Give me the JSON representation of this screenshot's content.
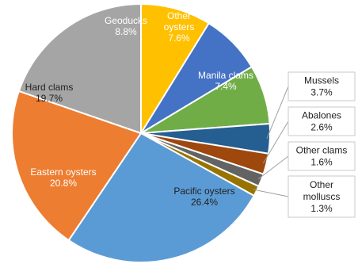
{
  "chart_data": {
    "type": "pie",
    "slices": [
      {
        "label": "Geoducks",
        "value": 8.8,
        "value_label": "8.8%",
        "color": "#FFC000",
        "label_color": "#ffffff"
      },
      {
        "label": "Other oysters",
        "label_lines": [
          "Other",
          "oysters"
        ],
        "value": 7.6,
        "value_label": "7.6%",
        "color": "#4472C4",
        "label_color": "#ffffff"
      },
      {
        "label": "Manila clams",
        "value": 7.4,
        "value_label": "7.4%",
        "color": "#70AD47",
        "label_color": "#ffffff"
      },
      {
        "label": "Mussels",
        "value": 3.7,
        "value_label": "3.7%",
        "color": "#255E91",
        "label_color": "#222222",
        "callout": true
      },
      {
        "label": "Abalones",
        "value": 2.6,
        "value_label": "2.6%",
        "color": "#9E480E",
        "label_color": "#222222",
        "callout": true
      },
      {
        "label": "Other clams",
        "value": 1.6,
        "value_label": "1.6%",
        "color": "#636363",
        "label_color": "#222222",
        "callout": true
      },
      {
        "label": "Other molluscs",
        "label_lines": [
          "Other",
          "molluscs"
        ],
        "value": 1.3,
        "value_label": "1.3%",
        "color": "#997300",
        "label_color": "#222222",
        "callout": true
      },
      {
        "label": "Pacific oysters",
        "value": 26.4,
        "value_label": "26.4%",
        "color": "#5B9BD5",
        "label_color": "#222222"
      },
      {
        "label": "Eastern oysters",
        "value": 20.8,
        "value_label": "20.8%",
        "color": "#ED7D31",
        "label_color": "#ffffff"
      },
      {
        "label": "Hard clams",
        "value": 19.7,
        "value_label": "19.7%",
        "color": "#A5A5A5",
        "label_color": "#222222"
      }
    ],
    "legend": "none"
  }
}
